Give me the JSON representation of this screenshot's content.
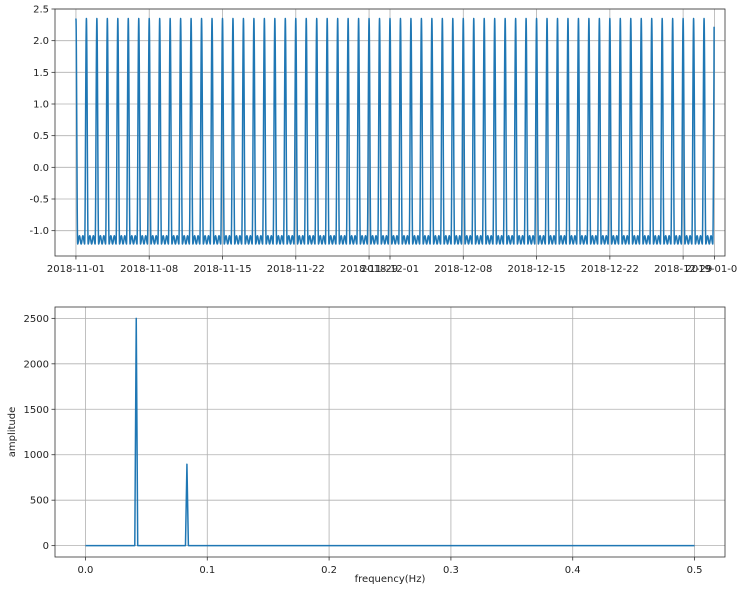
{
  "chart_data": [
    {
      "type": "line",
      "xlabel": "",
      "ylabel": "",
      "x_start": "2018-11-01 00:00",
      "x_end": "2018-12-31 23:00",
      "sampling": "hourly",
      "period_hours": 24,
      "ylim": [
        -1.4,
        2.5
      ],
      "xlim": [
        "2018-10-30",
        "2019-01-02"
      ],
      "x_ticks": [
        "2018-11-01",
        "2018-11-08",
        "2018-11-15",
        "2018-11-22",
        "2018-11-29",
        "2018-12-01",
        "2018-12-08",
        "2018-12-15",
        "2018-12-22",
        "2018-12-29",
        "2019-01-01"
      ],
      "y_ticks": [
        "-1.0",
        "-0.5",
        "0.0",
        "0.5",
        "1.0",
        "1.5",
        "2.0",
        "2.5"
      ],
      "y_max": 2.35,
      "y_min": -1.21,
      "last_value": 2.22,
      "grid": true,
      "color": "#1f77b4"
    },
    {
      "type": "line",
      "xlabel": "frequency(Hz)",
      "ylabel": "amplitude",
      "xlim": [
        -0.025,
        0.525
      ],
      "ylim": [
        -125,
        2625
      ],
      "x_ticks": [
        "0.0",
        "0.1",
        "0.2",
        "0.3",
        "0.4",
        "0.5"
      ],
      "y_ticks": [
        "0",
        "500",
        "1000",
        "1500",
        "2000",
        "2500"
      ],
      "x_range": [
        0,
        0.5
      ],
      "peaks": [
        {
          "frequency": 0.0417,
          "amplitude": 2500
        },
        {
          "frequency": 0.0833,
          "amplitude": 895
        }
      ],
      "baseline": 0,
      "grid": true,
      "color": "#1f77b4"
    }
  ]
}
